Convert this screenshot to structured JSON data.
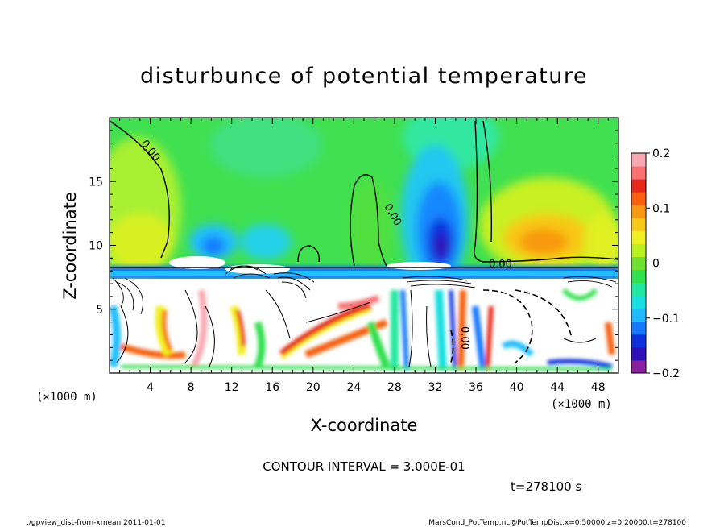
{
  "chart_data": {
    "type": "heatmap",
    "title": "disturbunce of potential temperature",
    "xlabel": "X-coordinate",
    "ylabel": "Z-coordinate",
    "x_unit": "(×1000 m)",
    "z_unit": "(×1000 m)",
    "xlim": [
      0,
      50
    ],
    "ylim": [
      0,
      20
    ],
    "x_ticks": [
      4,
      8,
      12,
      16,
      20,
      24,
      28,
      32,
      36,
      40,
      44,
      48
    ],
    "y_ticks": [
      5,
      10,
      15
    ],
    "colorbar": {
      "range": [
        -0.2,
        0.2
      ],
      "ticks": [
        0.2,
        0.1,
        0,
        -0.1,
        -0.2
      ],
      "tick_labels": [
        "0.2",
        "0.1",
        "0",
        "−0.1",
        "−0.2"
      ],
      "colors": [
        "#8a1fa0",
        "#3010b8",
        "#1030e0",
        "#1878ff",
        "#20b8ff",
        "#18e0e0",
        "#20e8a0",
        "#30e050",
        "#70e030",
        "#b8f020",
        "#f0f020",
        "#f8c818",
        "#f89810",
        "#f86010",
        "#e82818",
        "#f87070",
        "#f8a8b0"
      ]
    },
    "contour_labels": [
      "0.00",
      "0.00",
      "0.00",
      "0.00"
    ],
    "contour_interval": "CONTOUR INTERVAL = 3.000E-01",
    "time": "t=278100 s"
  },
  "footer": {
    "left": "./gpview_dist-from-xmean  2011-01-01",
    "right": "MarsCond_PotTemp.nc@PotTempDist,x=0:50000,z=0:20000,t=278100"
  }
}
